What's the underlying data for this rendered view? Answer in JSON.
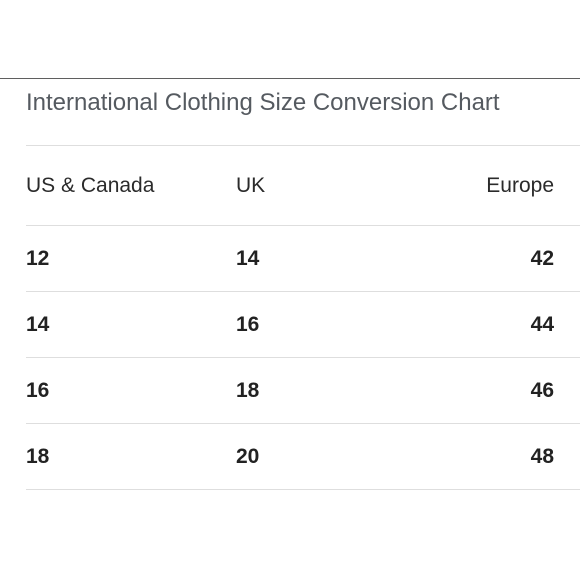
{
  "title": "International Clothing Size Conversion Chart",
  "table": {
    "headers": [
      "US & Canada",
      "UK",
      "Europe"
    ],
    "rows": [
      [
        "12",
        "14",
        "42"
      ],
      [
        "14",
        "16",
        "44"
      ],
      [
        "16",
        "18",
        "46"
      ],
      [
        "18",
        "20",
        "48"
      ]
    ]
  }
}
